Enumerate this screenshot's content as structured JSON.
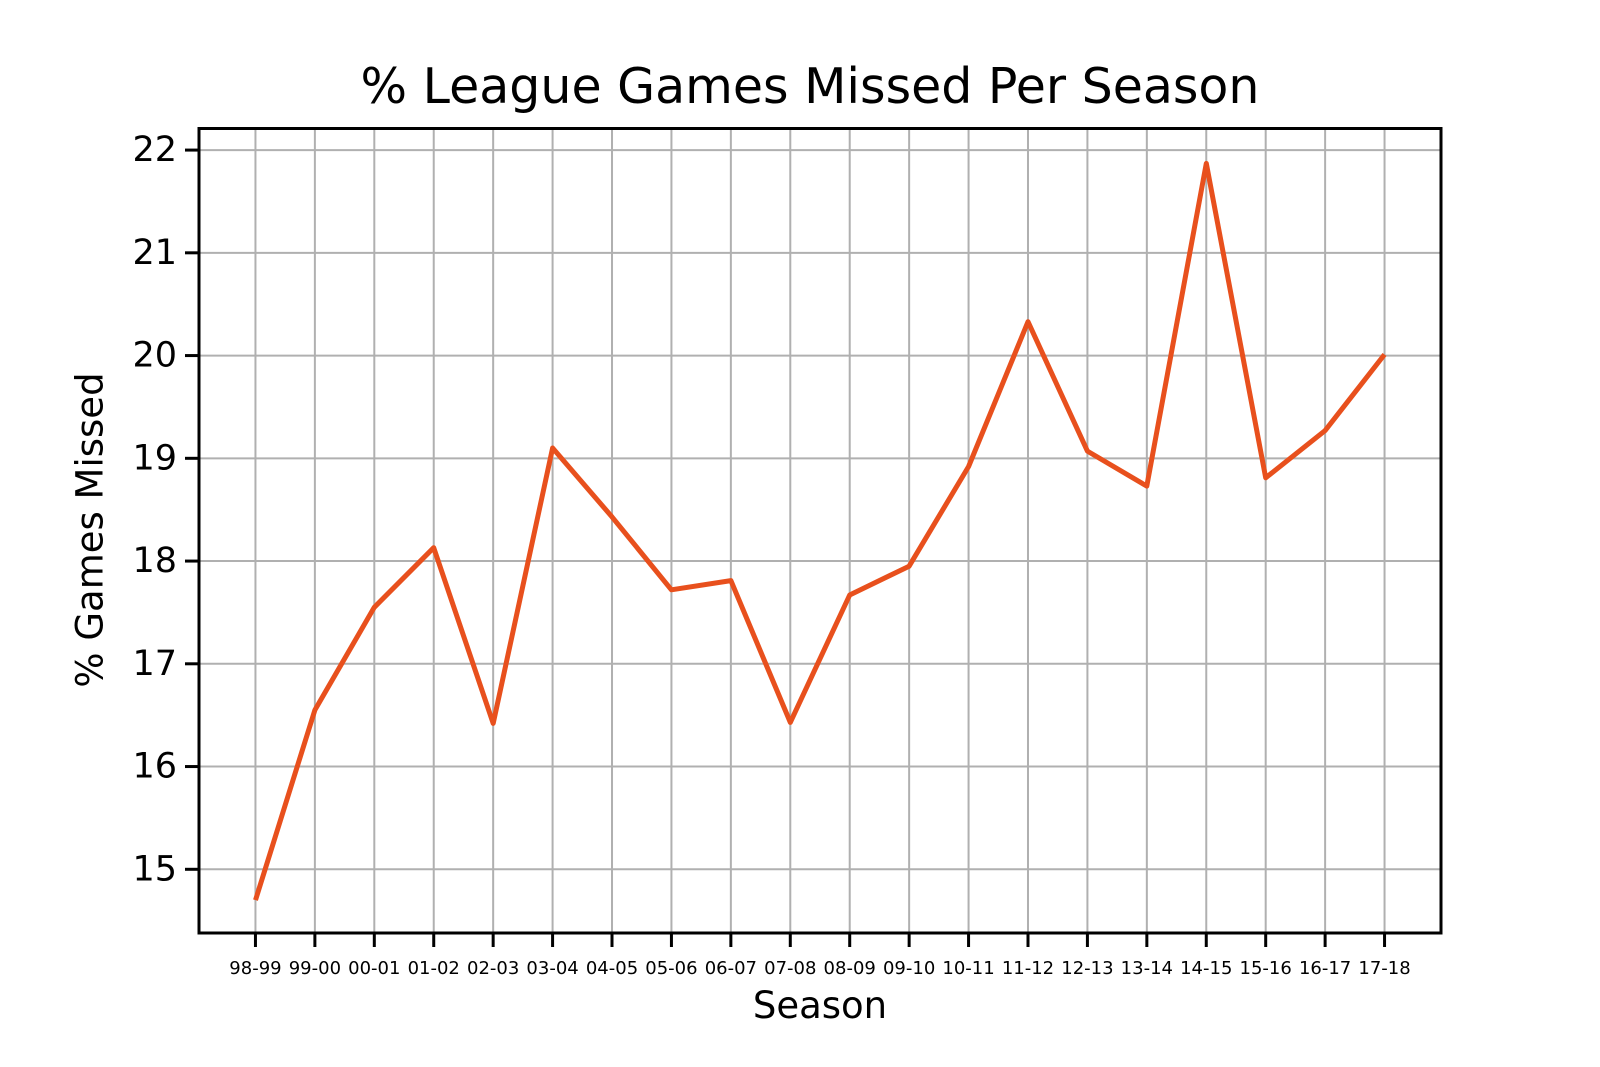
{
  "chart_data": {
    "type": "line",
    "title": "% League Games Missed Per Season",
    "xlabel": "Season",
    "ylabel": "% Games Missed",
    "categories": [
      "98-99",
      "99-00",
      "00-01",
      "01-02",
      "02-03",
      "03-04",
      "04-05",
      "05-06",
      "06-07",
      "07-08",
      "08-09",
      "09-10",
      "10-11",
      "11-12",
      "12-13",
      "13-14",
      "14-15",
      "15-16",
      "16-17",
      "17-18"
    ],
    "series": [
      {
        "name": "% games missed",
        "values": [
          14.7,
          16.55,
          17.55,
          18.13,
          16.42,
          19.1,
          18.43,
          17.72,
          17.81,
          16.43,
          17.67,
          17.95,
          18.92,
          20.33,
          19.07,
          18.73,
          21.87,
          18.81,
          19.27,
          20.01
        ]
      }
    ],
    "ylim": [
      14.38,
      22.21
    ],
    "yticks": [
      15,
      16,
      17,
      18,
      19,
      20,
      21,
      22
    ],
    "grid": true,
    "legend_position": "none",
    "line_color": "#e8501d",
    "grid_color": "#b0b0b0",
    "axis_color": "#000000",
    "background_color": "#ffffff"
  }
}
